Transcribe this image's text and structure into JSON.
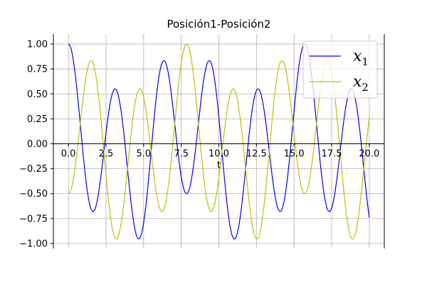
{
  "chart_data": {
    "type": "line",
    "title": "Posición1-Posición2",
    "xlabel": "t",
    "ylabel": "",
    "xlim": [
      -1,
      21
    ],
    "ylim": [
      -1.05,
      1.1
    ],
    "xticks": [
      0.0,
      2.5,
      5.0,
      7.5,
      10.0,
      12.5,
      15.0,
      17.5,
      20.0
    ],
    "xtick_labels": [
      "0.0",
      "2.5",
      "5.0",
      "7.5",
      "10.0",
      "12.5",
      "15.0",
      "17.5",
      "20.0"
    ],
    "yticks": [
      1.0,
      0.75,
      0.5,
      0.25,
      0.0,
      -0.25,
      -0.5,
      -0.75,
      -1.0
    ],
    "ytick_labels": [
      "1.00",
      "0.75",
      "0.50",
      "0.25",
      "0.00",
      "−0.25",
      "−0.50",
      "−0.75",
      "−1.00"
    ],
    "grid": true,
    "legend_position": "top-right",
    "series": [
      {
        "name": "x1",
        "legend_main": "x",
        "legend_sub": "1",
        "color": "#0000ff",
        "formula": "0.75*cos(2.0*t) + 0.25*cos(0.8*t)",
        "t_range": [
          0,
          20
        ]
      },
      {
        "name": "x2",
        "legend_main": "x",
        "legend_sub": "2",
        "color": "#bfbf00",
        "formula": "-0.75*cos(2.0*t) + 0.25*cos(0.8*t)",
        "t_range": [
          0,
          20
        ]
      }
    ]
  }
}
